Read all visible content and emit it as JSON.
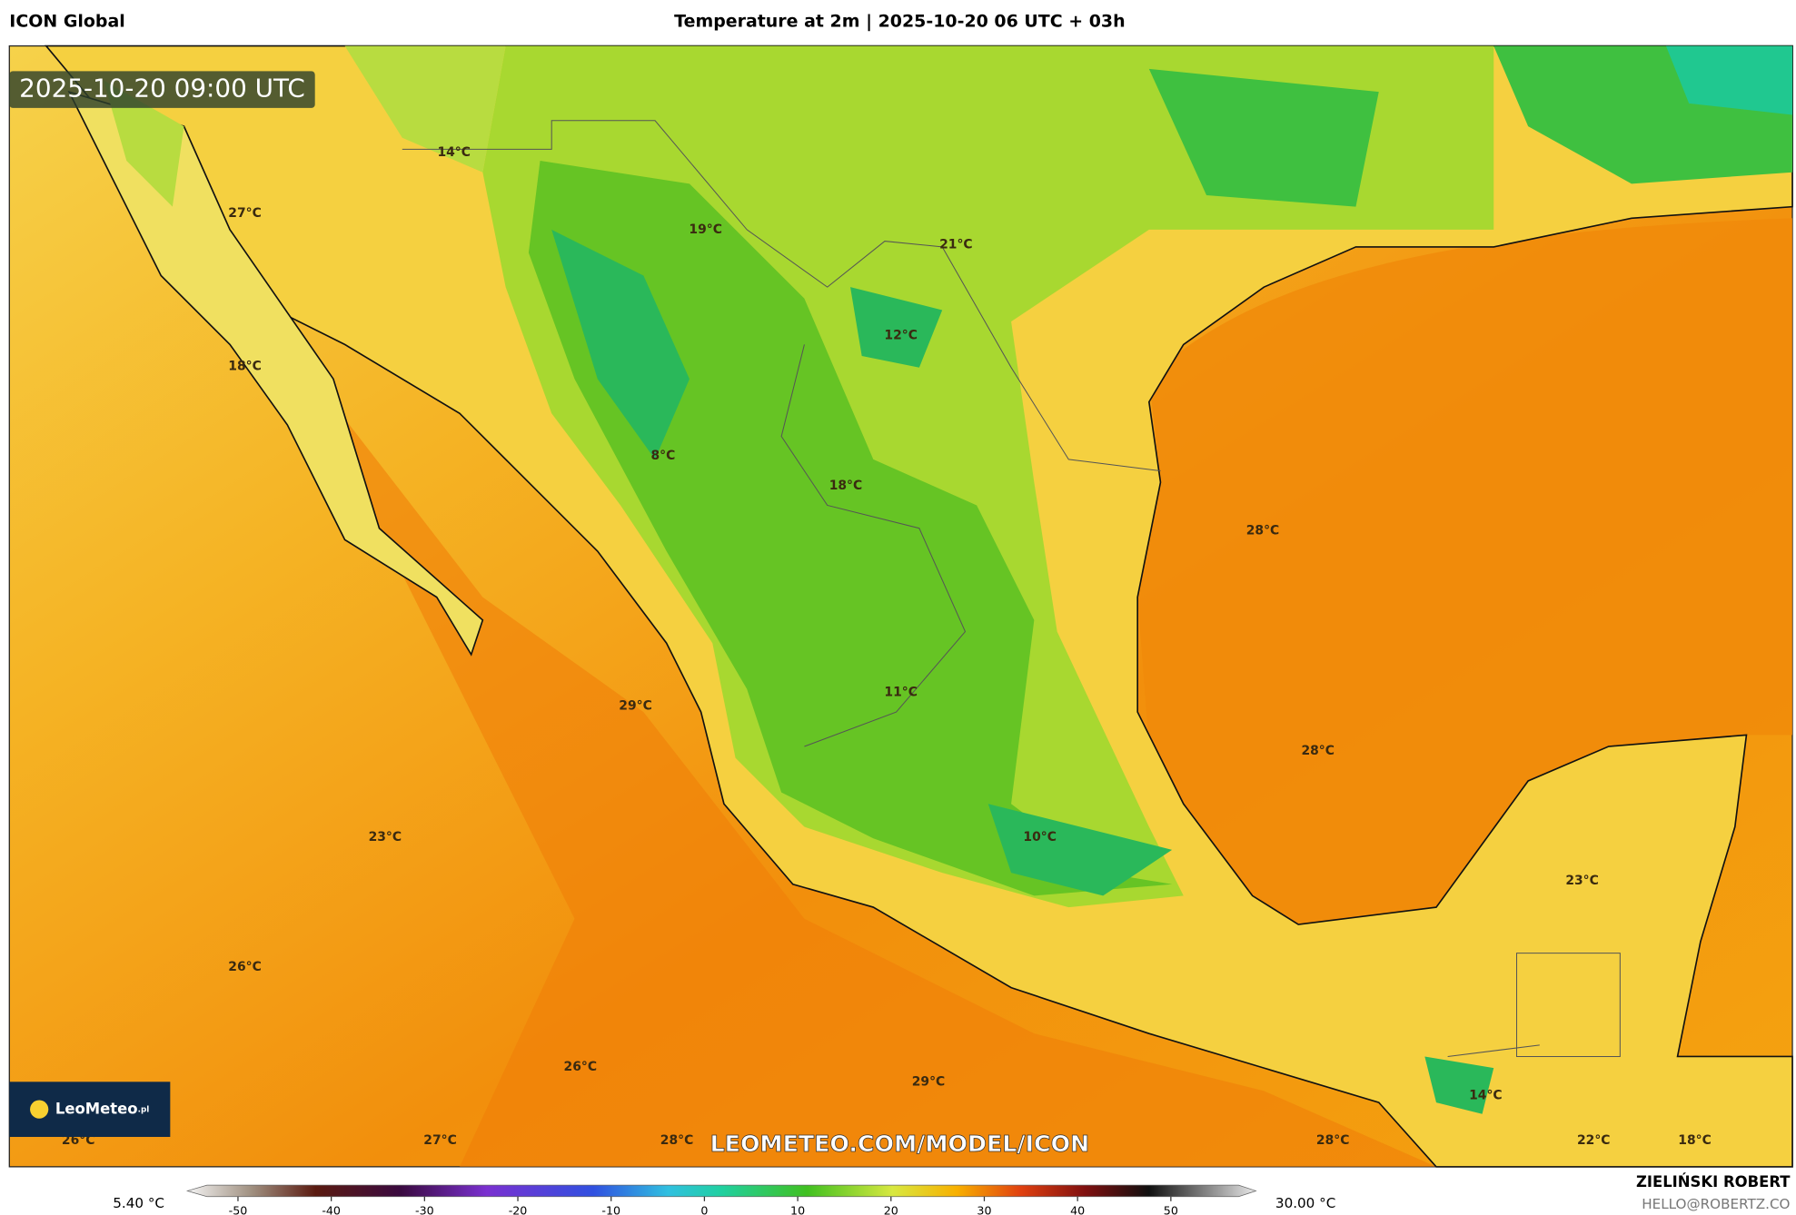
{
  "header": {
    "model": "ICON Global",
    "title": "Temperature at 2m | 2025-10-20 06 UTC + 03h"
  },
  "timestamp": "2025-10-20 09:00 UTC",
  "map_labels": [
    "14°C",
    "27°C",
    "19°C",
    "21°C",
    "12°C",
    "18°C",
    "8°C",
    "18°C",
    "28°C",
    "29°C",
    "11°C",
    "28°C",
    "23°C",
    "10°C",
    "23°C",
    "26°C",
    "26°C",
    "29°C",
    "26°C",
    "27°C",
    "28°C",
    "28°C",
    "14°C",
    "22°C",
    "18°C"
  ],
  "watermark": "LEOMETEO.COM/MODEL/ICON",
  "logo": {
    "brand": "LeoMeteo",
    "suffix": ".pl"
  },
  "colorbar": {
    "min_label": "5.40 °C",
    "max_label": "30.00 °C",
    "ticks": [
      -50,
      -40,
      -30,
      -20,
      -10,
      0,
      10,
      20,
      30,
      40,
      50
    ]
  },
  "footer": {
    "author": "ZIELIŃSKI ROBERT",
    "contact": "HELLO@ROBERTZ.CO"
  }
}
